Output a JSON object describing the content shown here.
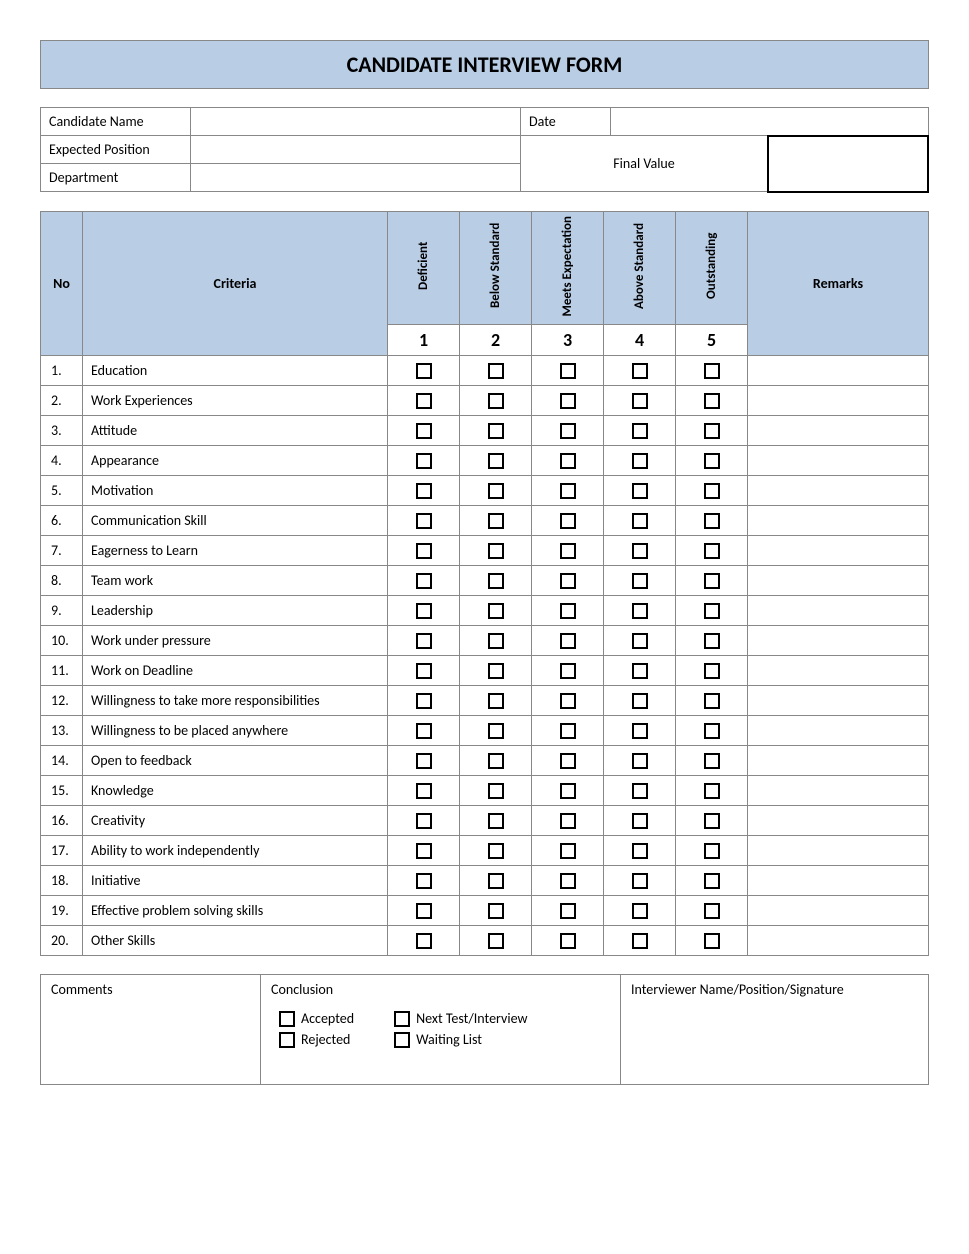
{
  "title": "CANDIDATE INTERVIEW FORM",
  "colors": {
    "header_bg": "#b9cde5",
    "border": "#888888",
    "page_bg": "#ffffff",
    "text": "#000000"
  },
  "info": {
    "candidate_name_label": "Candidate Name",
    "candidate_name_value": "",
    "date_label": "Date",
    "date_value": "",
    "expected_position_label": "Expected Position",
    "expected_position_value": "",
    "department_label": "Department",
    "department_value": "",
    "final_value_label": "Final Value",
    "final_value_value": ""
  },
  "rating_headers": {
    "no": "No",
    "criteria": "Criteria",
    "remarks": "Remarks",
    "scales": [
      {
        "label": "Deficient",
        "value": "1"
      },
      {
        "label": "Below Standard",
        "value": "2"
      },
      {
        "label": "Meets Expectation",
        "value": "3"
      },
      {
        "label": "Above Standard",
        "value": "4"
      },
      {
        "label": "Outstanding",
        "value": "5"
      }
    ]
  },
  "criteria": [
    {
      "no": "1.",
      "label": "Education",
      "remarks": ""
    },
    {
      "no": "2.",
      "label": "Work Experiences",
      "remarks": ""
    },
    {
      "no": "3.",
      "label": "Attitude",
      "remarks": ""
    },
    {
      "no": "4.",
      "label": "Appearance",
      "remarks": ""
    },
    {
      "no": "5.",
      "label": "Motivation",
      "remarks": ""
    },
    {
      "no": "6.",
      "label": "Communication Skill",
      "remarks": ""
    },
    {
      "no": "7.",
      "label": "Eagerness to Learn",
      "remarks": ""
    },
    {
      "no": "8.",
      "label": "Team work",
      "remarks": ""
    },
    {
      "no": "9.",
      "label": "Leadership",
      "remarks": ""
    },
    {
      "no": "10.",
      "label": "Work under pressure",
      "remarks": ""
    },
    {
      "no": "11.",
      "label": "Work on Deadline",
      "remarks": ""
    },
    {
      "no": "12.",
      "label": "Willingness to take more responsibilities",
      "remarks": ""
    },
    {
      "no": "13.",
      "label": "Willingness to be placed anywhere",
      "remarks": ""
    },
    {
      "no": "14.",
      "label": "Open to feedback",
      "remarks": ""
    },
    {
      "no": "15.",
      "label": "Knowledge",
      "remarks": ""
    },
    {
      "no": "16.",
      "label": "Creativity",
      "remarks": ""
    },
    {
      "no": "17.",
      "label": "Ability to work independently",
      "remarks": ""
    },
    {
      "no": "18.",
      "label": "Initiative",
      "remarks": ""
    },
    {
      "no": "19.",
      "label": "Effective problem solving skills",
      "remarks": ""
    },
    {
      "no": "20.",
      "label": "Other Skills",
      "remarks": ""
    }
  ],
  "footer": {
    "comments_label": "Comments",
    "comments_value": "",
    "conclusion_label": "Conclusion",
    "interviewer_label": "Interviewer Name/Position/Signature",
    "interviewer_value": "",
    "options": {
      "accepted": "Accepted",
      "rejected": "Rejected",
      "next": "Next Test/Interview",
      "waiting": "Waiting List"
    }
  }
}
